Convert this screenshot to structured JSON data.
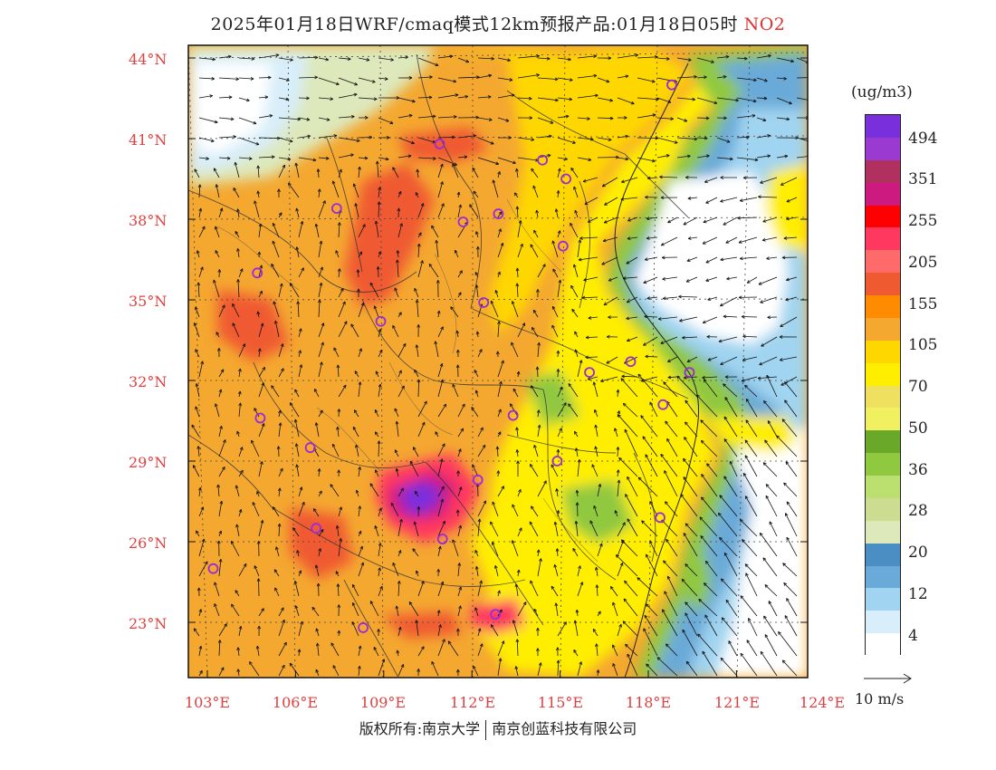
{
  "title": {
    "main": "2025年01月18日WRF/cmaq模式12km预报产品:01月18日05时",
    "pollutant": "NO2"
  },
  "axes": {
    "lat_labels": [
      "44°N",
      "41°N",
      "38°N",
      "35°N",
      "32°N",
      "29°N",
      "26°N",
      "23°N"
    ],
    "lat_values": [
      44,
      41,
      38,
      35,
      32,
      29,
      26,
      23
    ],
    "lon_labels": [
      "103°E",
      "106°E",
      "109°E",
      "112°E",
      "115°E",
      "118°E",
      "121°E",
      "124°E"
    ],
    "lon_values": [
      103,
      106,
      109,
      112,
      115,
      118,
      121,
      124
    ]
  },
  "legend": {
    "unit": "(ug/m3)",
    "levels": [
      "494",
      "351",
      "255",
      "205",
      "155",
      "105",
      "70",
      "50",
      "36",
      "28",
      "20",
      "12",
      "4"
    ],
    "colors": [
      "#7a2fdc",
      "#9a3ad0",
      "#b03060",
      "#cc1a80",
      "#ff0000",
      "#ff3860",
      "#ff6a6a",
      "#f05a30",
      "#ff8c00",
      "#f4a830",
      "#ffd700",
      "#ffee00",
      "#f0e060",
      "#f0f060",
      "#6aa82a",
      "#90c840",
      "#bce070",
      "#ccdc90",
      "#dde8bb",
      "#4a8ec4",
      "#6aaad8",
      "#a0d4f0",
      "#d8eefa",
      "#ffffff"
    ],
    "wind_ref": "10 m/s"
  },
  "cities": [
    {
      "lon": 118.8,
      "lat": 43.0
    },
    {
      "lon": 110.9,
      "lat": 40.8
    },
    {
      "lon": 114.4,
      "lat": 40.2
    },
    {
      "lon": 115.2,
      "lat": 39.5
    },
    {
      "lon": 107.4,
      "lat": 38.4
    },
    {
      "lon": 111.7,
      "lat": 37.9
    },
    {
      "lon": 112.9,
      "lat": 38.2
    },
    {
      "lon": 115.1,
      "lat": 37.0
    },
    {
      "lon": 104.7,
      "lat": 36.0
    },
    {
      "lon": 108.9,
      "lat": 34.2
    },
    {
      "lon": 112.4,
      "lat": 34.9
    },
    {
      "lon": 116.0,
      "lat": 32.3
    },
    {
      "lon": 117.4,
      "lat": 32.7
    },
    {
      "lon": 119.4,
      "lat": 32.3
    },
    {
      "lon": 104.8,
      "lat": 30.6
    },
    {
      "lon": 113.4,
      "lat": 30.7
    },
    {
      "lon": 118.5,
      "lat": 31.1
    },
    {
      "lon": 106.5,
      "lat": 29.5
    },
    {
      "lon": 112.2,
      "lat": 28.3
    },
    {
      "lon": 114.9,
      "lat": 29.0
    },
    {
      "lon": 106.7,
      "lat": 26.5
    },
    {
      "lon": 111.0,
      "lat": 26.1
    },
    {
      "lon": 118.4,
      "lat": 26.9
    },
    {
      "lon": 103.2,
      "lat": 25.0
    },
    {
      "lon": 108.3,
      "lat": 22.8
    },
    {
      "lon": 112.8,
      "lat": 23.3
    }
  ],
  "footer": {
    "left": "版权所有:南京大学",
    "right": "南京创蓝科技有限公司"
  }
}
